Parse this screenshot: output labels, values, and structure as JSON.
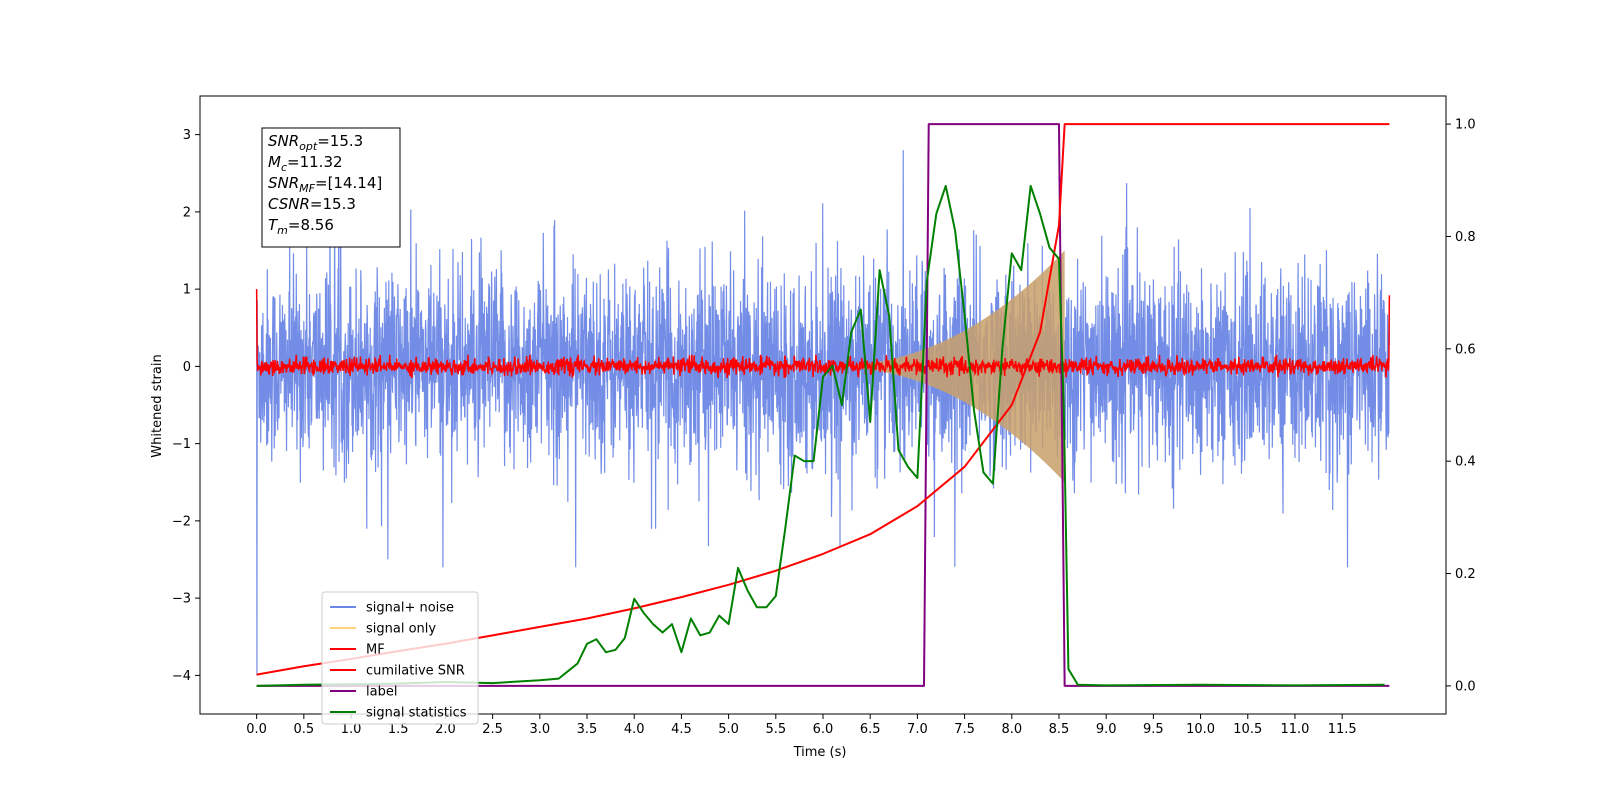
{
  "chart_data": {
    "type": "line",
    "xlabel": "Time (s)",
    "ylabel": "Whitened strain",
    "xlim": [
      -0.6,
      12.6
    ],
    "ylim": [
      -4.5,
      3.5
    ],
    "y2lim": [
      -0.05,
      1.05
    ],
    "x_ticks": [
      "0.0",
      "0.5",
      "1.0",
      "1.5",
      "2.0",
      "2.5",
      "3.0",
      "3.5",
      "4.0",
      "4.5",
      "5.0",
      "5.5",
      "6.0",
      "6.5",
      "7.0",
      "7.5",
      "8.0",
      "8.5",
      "9.0",
      "9.5",
      "10.0",
      "10.5",
      "11.0",
      "11.5"
    ],
    "y_ticks": [
      "3",
      "2",
      "1",
      "0",
      "−1",
      "−2",
      "−3",
      "−4"
    ],
    "y2_ticks": [
      "1.0",
      "0.8",
      "0.6",
      "0.4",
      "0.2",
      "0.0"
    ],
    "annotation": {
      "lines": [
        {
          "var": "SNR",
          "sub": "opt",
          "value": "=15.3"
        },
        {
          "var": "M",
          "sub": "c",
          "value": "=11.32"
        },
        {
          "var": "SNR",
          "sub": "MF",
          "value": "=[14.14]"
        },
        {
          "var": "CSNR",
          "sub": "",
          "value": "=15.3"
        },
        {
          "var": "T",
          "sub": "m",
          "value": "=8.56"
        }
      ]
    },
    "legend": {
      "placement": "lower-left",
      "entries": [
        {
          "label": "signal+ noise",
          "color": "#6b87e6"
        },
        {
          "label": "signal only",
          "color": "#ffd27a"
        },
        {
          "label": "MF",
          "color": "#ff0000"
        },
        {
          "label": "cumilative SNR",
          "color": "#ff0000"
        },
        {
          "label": "label",
          "color": "#800080"
        },
        {
          "label": "signal statistics",
          "color": "#008000"
        }
      ]
    },
    "series": [
      {
        "name": "signal+ noise",
        "axis": "left",
        "color": "#6b87e6",
        "noise_band": [
          -1.3,
          1.3
        ],
        "extremes": [
          -2.6,
          2.8
        ],
        "t_start": 0.0,
        "t_end": 12.0
      },
      {
        "name": "signal only",
        "axis": "left",
        "color": "#ffd27a",
        "chirp_end": 8.56,
        "peak_amplitude": 1.5
      },
      {
        "name": "MF",
        "axis": "left",
        "color": "#ff0000",
        "band": [
          -0.15,
          0.15
        ],
        "t_start": 0.0,
        "t_end": 12.0
      },
      {
        "name": "cumilative SNR",
        "axis": "right",
        "color": "#ff0000",
        "x": [
          0.0,
          0.5,
          1.0,
          1.5,
          2.0,
          2.5,
          3.0,
          3.5,
          4.0,
          4.5,
          5.0,
          5.5,
          6.0,
          6.5,
          7.0,
          7.5,
          8.0,
          8.3,
          8.5,
          8.56,
          12.0
        ],
        "y": [
          0.02,
          0.035,
          0.048,
          0.062,
          0.075,
          0.09,
          0.105,
          0.12,
          0.138,
          0.158,
          0.18,
          0.205,
          0.235,
          0.27,
          0.32,
          0.39,
          0.5,
          0.63,
          0.82,
          1.0,
          1.0
        ]
      },
      {
        "name": "label",
        "axis": "right",
        "color": "#800080",
        "x": [
          0.0,
          7.07,
          7.12,
          8.5,
          8.56,
          12.0
        ],
        "y": [
          0.0,
          0.0,
          1.0,
          1.0,
          0.0,
          0.0
        ]
      },
      {
        "name": "signal statistics",
        "axis": "right",
        "color": "#008000",
        "x": [
          0.0,
          0.5,
          1.0,
          1.5,
          2.0,
          2.5,
          3.0,
          3.2,
          3.4,
          3.5,
          3.6,
          3.7,
          3.8,
          3.9,
          4.0,
          4.1,
          4.2,
          4.3,
          4.4,
          4.5,
          4.6,
          4.7,
          4.8,
          4.9,
          5.0,
          5.1,
          5.2,
          5.3,
          5.4,
          5.5,
          5.6,
          5.7,
          5.8,
          5.9,
          6.0,
          6.1,
          6.2,
          6.3,
          6.4,
          6.5,
          6.6,
          6.7,
          6.8,
          6.9,
          7.0,
          7.1,
          7.2,
          7.3,
          7.4,
          7.5,
          7.6,
          7.7,
          7.8,
          7.9,
          8.0,
          8.1,
          8.2,
          8.3,
          8.4,
          8.5,
          8.55,
          8.6,
          8.7,
          9.0,
          10.0,
          11.0,
          11.95
        ],
        "y": [
          0.0,
          0.002,
          0.003,
          0.004,
          0.007,
          0.005,
          0.01,
          0.013,
          0.04,
          0.075,
          0.083,
          0.06,
          0.064,
          0.085,
          0.155,
          0.13,
          0.11,
          0.095,
          0.11,
          0.06,
          0.12,
          0.09,
          0.095,
          0.125,
          0.11,
          0.21,
          0.17,
          0.14,
          0.14,
          0.16,
          0.28,
          0.41,
          0.4,
          0.4,
          0.55,
          0.57,
          0.5,
          0.63,
          0.67,
          0.47,
          0.74,
          0.66,
          0.42,
          0.39,
          0.37,
          0.72,
          0.84,
          0.89,
          0.81,
          0.66,
          0.49,
          0.38,
          0.36,
          0.6,
          0.77,
          0.74,
          0.89,
          0.84,
          0.78,
          0.76,
          0.5,
          0.03,
          0.002,
          0.001,
          0.002,
          0.001,
          0.002
        ]
      }
    ]
  }
}
